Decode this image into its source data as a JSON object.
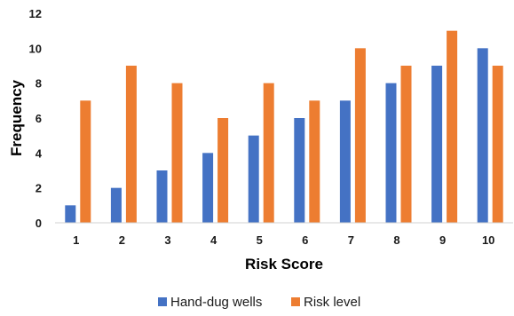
{
  "chart_data": {
    "type": "bar",
    "title": "",
    "xlabel": "Risk Score",
    "ylabel": "Frequency",
    "categories": [
      "1",
      "2",
      "3",
      "4",
      "5",
      "6",
      "7",
      "8",
      "9",
      "10"
    ],
    "series": [
      {
        "name": "Hand-dug wells",
        "color": "#4472C4",
        "values": [
          1,
          2,
          3,
          4,
          5,
          6,
          7,
          8,
          9,
          10
        ]
      },
      {
        "name": "Risk level",
        "color": "#ED7D31",
        "values": [
          7,
          9,
          8,
          6,
          8,
          7,
          10,
          9,
          11,
          9
        ]
      }
    ],
    "ylim": [
      0,
      12
    ],
    "yticks": [
      "0",
      "2",
      "4",
      "6",
      "8",
      "10",
      "12"
    ],
    "grid": false,
    "legend": "bottom"
  }
}
